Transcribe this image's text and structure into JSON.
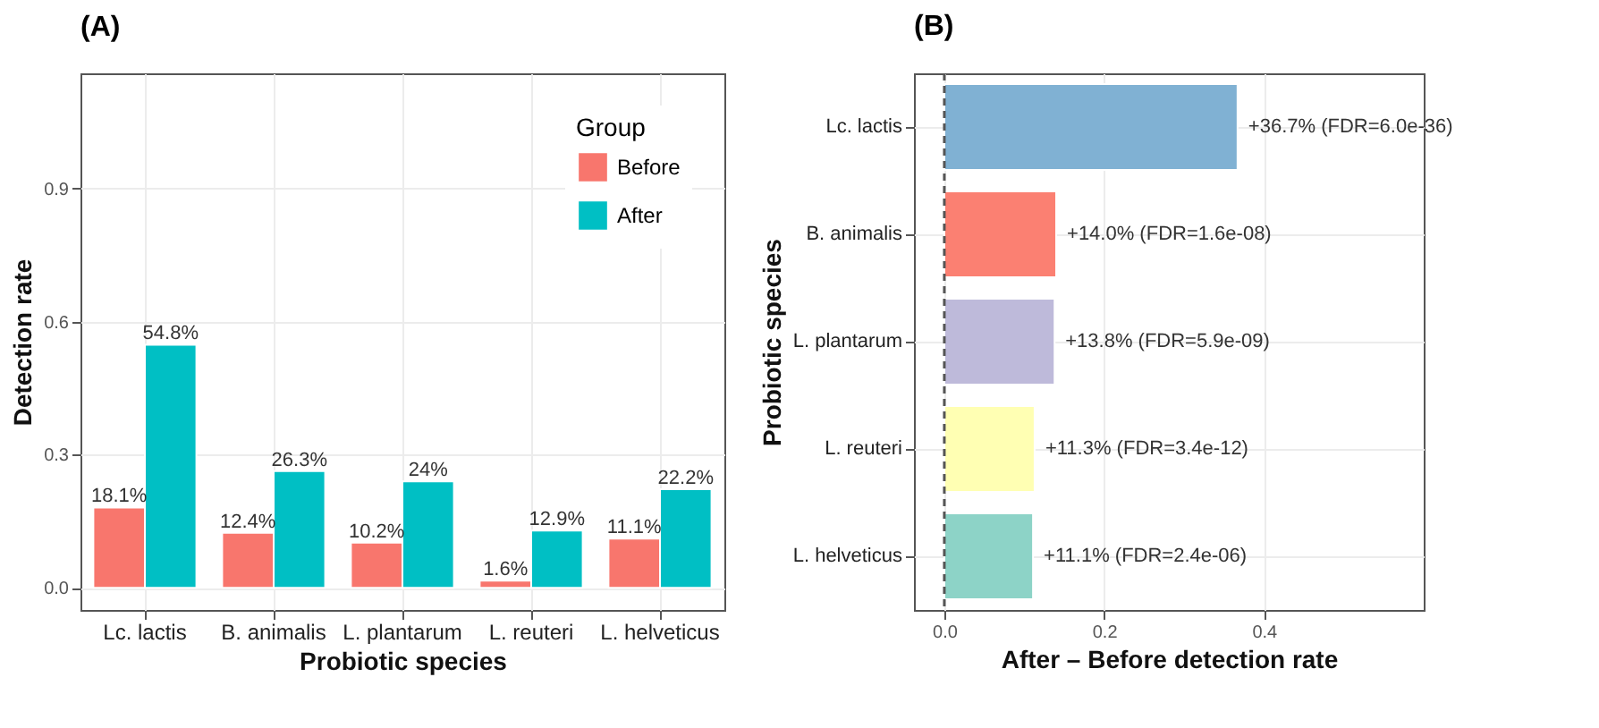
{
  "chart_data": [
    {
      "type": "bar",
      "title": "(A)",
      "xlabel": "Probiotic species",
      "ylabel": "Detection rate",
      "legend_title": "Group",
      "categories": [
        "Lc. lactis",
        "B. animalis",
        "L. plantarum",
        "L. reuteri",
        "L. helveticus"
      ],
      "series": [
        {
          "name": "Before",
          "color": "#f8766d",
          "values": [
            0.181,
            0.124,
            0.102,
            0.016,
            0.111
          ],
          "value_labels": [
            "18.1%",
            "12.4%",
            "10.2%",
            "1.6%",
            "11.1%"
          ]
        },
        {
          "name": "After",
          "color": "#00bfc4",
          "values": [
            0.548,
            0.263,
            0.24,
            0.129,
            0.222
          ],
          "value_labels": [
            "54.8%",
            "26.3%",
            "24%",
            "12.9%",
            "22.2%"
          ]
        }
      ],
      "ylim": [
        -0.05,
        1.16
      ],
      "yticks": [
        {
          "value": 0,
          "label": "0.0"
        },
        0.3,
        0.6,
        0.9
      ],
      "grid": true,
      "legend": "top right"
    },
    {
      "type": "bar",
      "orientation": "horizontal",
      "title": "(B)",
      "xlabel": "After – Before detection rate",
      "ylabel": "Probiotic species",
      "categories": [
        "Lc. lactis",
        "B. animalis",
        "L. plantarum",
        "L. reuteri",
        "L. helveticus"
      ],
      "values": [
        0.367,
        0.14,
        0.138,
        0.113,
        0.111
      ],
      "colors": [
        "#80b1d3",
        "#fb8072",
        "#bebada",
        "#ffffb3",
        "#8dd3c7"
      ],
      "value_labels": [
        "+36.7% (FDR=6.0e-36)",
        "+14.0% (FDR=1.6e-08)",
        "+13.8% (FDR=5.9e-09)",
        "+11.3% (FDR=3.4e-12)",
        "+11.1% (FDR=2.4e-06)"
      ],
      "xlim": [
        -0.038,
        0.6
      ],
      "xticks": [
        {
          "value": 0,
          "label": "0.0"
        },
        0.2,
        0.4
      ],
      "grid": true,
      "ref_lines": [
        {
          "axis": "x",
          "value": 0,
          "line_style": "dashed",
          "color": "#555555"
        }
      ]
    }
  ]
}
